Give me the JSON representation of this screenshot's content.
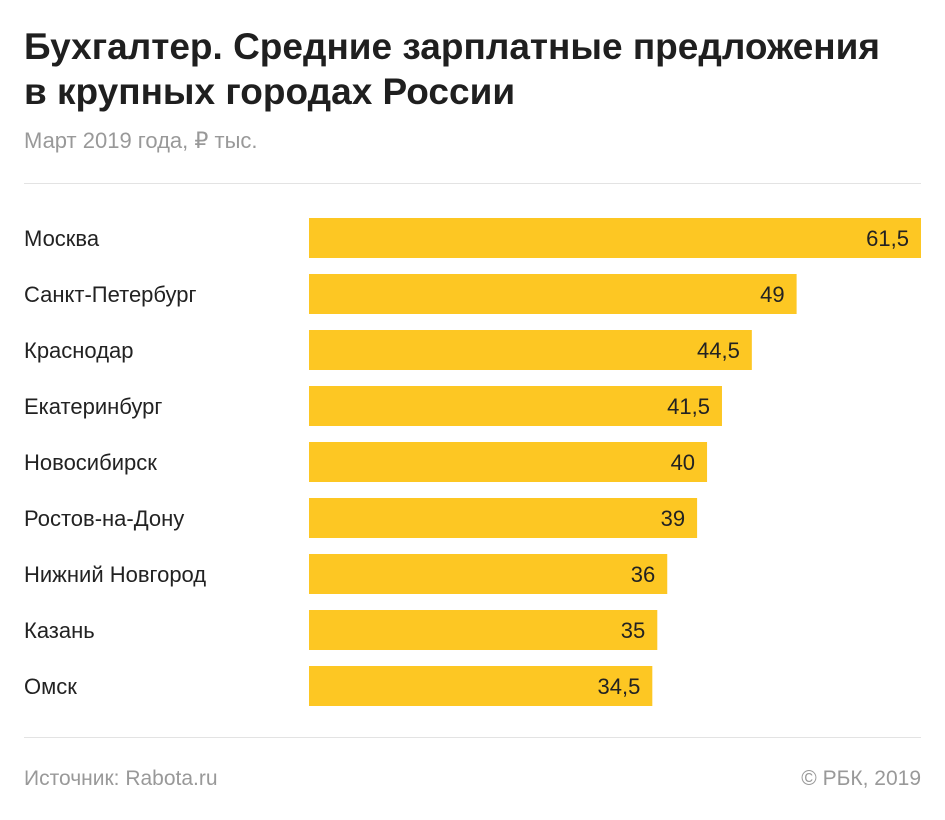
{
  "header": {
    "title": "Бухгалтер. Средние зарплатные предложения в крупных городах России",
    "subtitle": "Март 2019 года, ₽ тыс."
  },
  "chart_data": {
    "type": "bar",
    "orientation": "horizontal",
    "categories": [
      "Москва",
      "Санкт-Петербург",
      "Краснодар",
      "Екатеринбург",
      "Новосибирск",
      "Ростов-на-Дону",
      "Нижний Новгород",
      "Казань",
      "Омск"
    ],
    "values": [
      61.5,
      49,
      44.5,
      41.5,
      40,
      39,
      36,
      35,
      34.5
    ],
    "value_labels": [
      "61,5",
      "49",
      "44,5",
      "41,5",
      "40",
      "39",
      "36",
      "35",
      "34,5"
    ],
    "xlim": [
      0,
      61.5
    ],
    "bar_color": "#fdc723",
    "grid": false,
    "legend": "none"
  },
  "footer": {
    "source": "Источник: Rabota.ru",
    "copyright": "© РБК, 2019"
  }
}
